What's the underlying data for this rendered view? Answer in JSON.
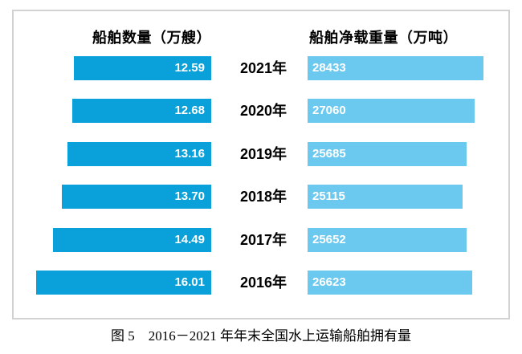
{
  "chart_data": {
    "type": "bar",
    "variant": "paired-horizontal-tornado",
    "left_header": "船舶数量（万艘）",
    "right_header": "船舶净载重量（万吨）",
    "left_color": "#0aa0da",
    "right_color": "#6bc9f0",
    "categories": [
      "2021年",
      "2020年",
      "2019年",
      "2018年",
      "2017年",
      "2016年"
    ],
    "rows": [
      {
        "year": "2021年",
        "ships": 12.59,
        "ships_display": "12.59",
        "tons": 28433,
        "tons_display": "28433"
      },
      {
        "year": "2020年",
        "ships": 12.68,
        "ships_display": "12.68",
        "tons": 27060,
        "tons_display": "27060"
      },
      {
        "year": "2019年",
        "ships": 13.16,
        "ships_display": "13.16",
        "tons": 25685,
        "tons_display": "25685"
      },
      {
        "year": "2018年",
        "ships": 13.7,
        "ships_display": "13.70",
        "tons": 25115,
        "tons_display": "25115"
      },
      {
        "year": "2017年",
        "ships": 14.49,
        "ships_display": "14.49",
        "tons": 25652,
        "tons_display": "25652"
      },
      {
        "year": "2016年",
        "ships": 16.01,
        "ships_display": "16.01",
        "tons": 26623,
        "tons_display": "26623"
      }
    ],
    "series": [
      {
        "name": "船舶数量（万艘）",
        "values": [
          12.59,
          12.68,
          13.16,
          13.7,
          14.49,
          16.01
        ]
      },
      {
        "name": "船舶净载重量（万吨）",
        "values": [
          28433,
          27060,
          25685,
          25115,
          25652,
          26623
        ]
      }
    ],
    "value_labels_inside_bars": true,
    "grid": false,
    "legend": "headers-above-columns"
  },
  "caption": {
    "text": "图 5　2016－2021 年年末全国水上运输船舶拥有量"
  }
}
